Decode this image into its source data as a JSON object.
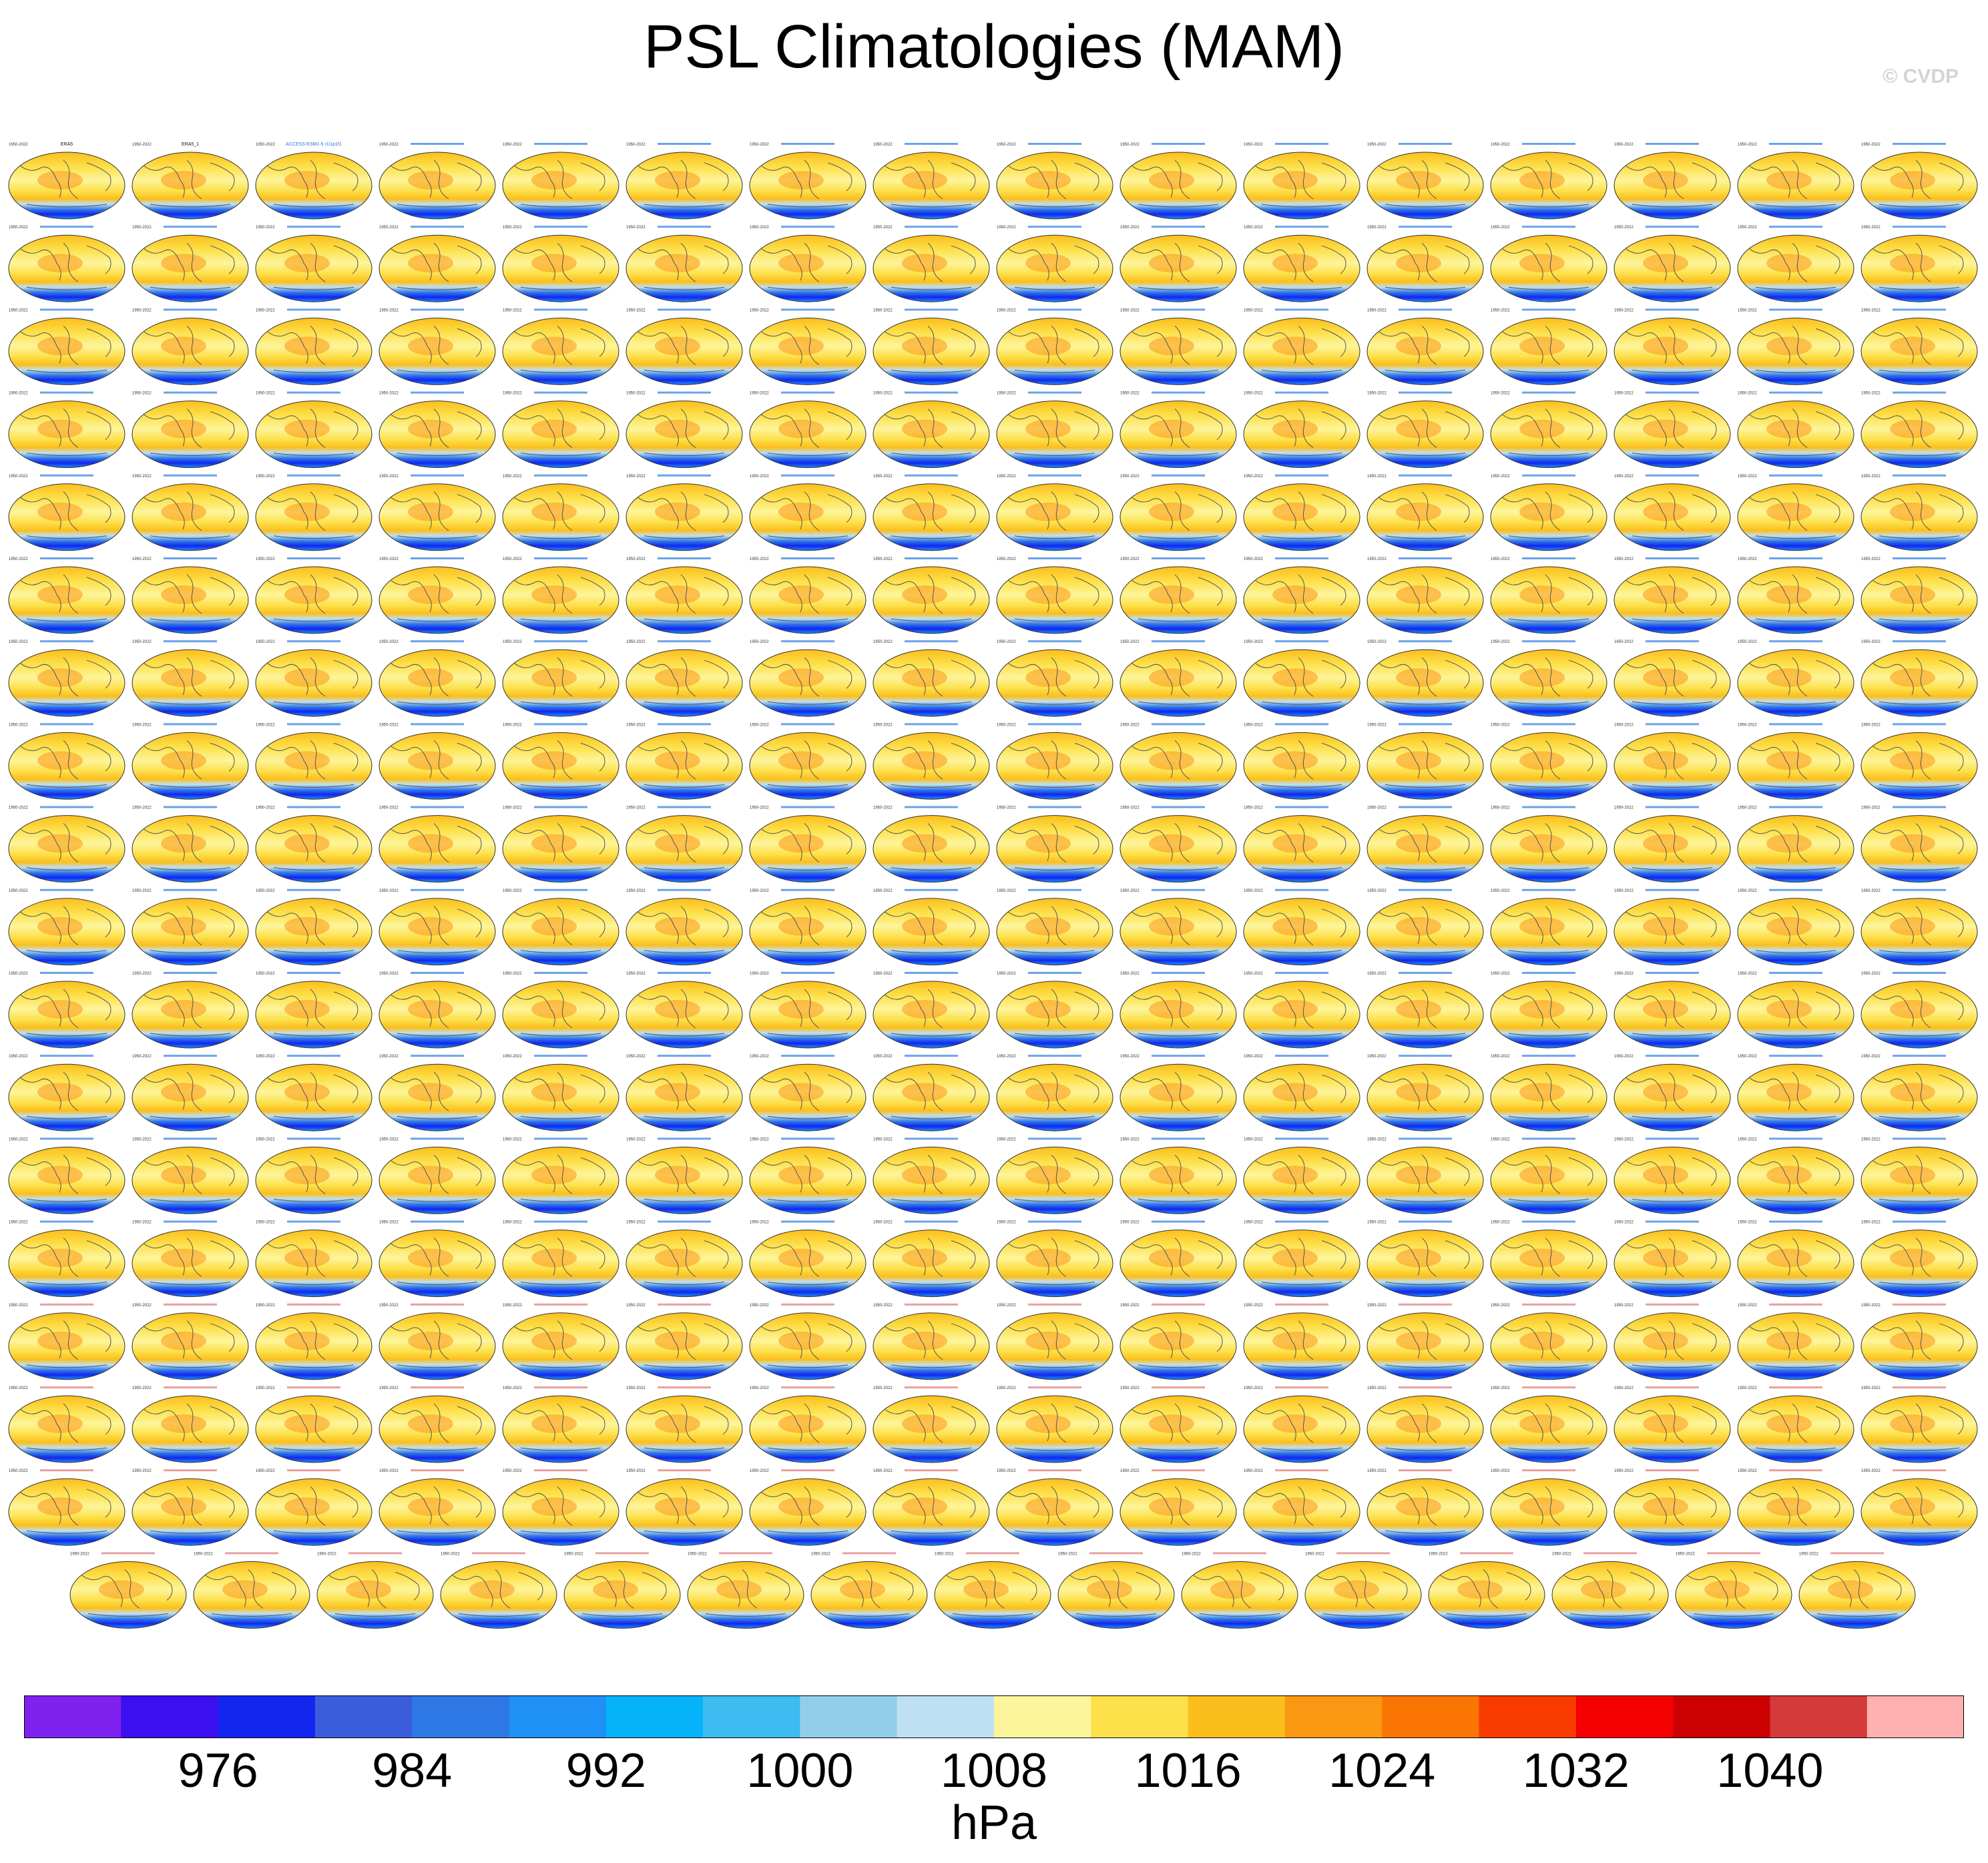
{
  "title": "PSL Climatologies (MAM)",
  "watermark": "© CVDP",
  "chart_data": {
    "type": "heatmap",
    "title": "PSL Climatologies (MAM)",
    "layout": "grid of global map panels",
    "rows": 18,
    "panels_per_full_row": 16,
    "panels_last_row": 15,
    "panel_header_left": "1950-2022",
    "first_panel_titles": [
      "ERA5",
      "ERA5_1",
      "ACCESS-ESM1-5 r1i1p1f1"
    ],
    "map_projection": "Robinson",
    "colorbar": {
      "units": "hPa",
      "tick_labels": [
        "976",
        "984",
        "992",
        "1000",
        "1008",
        "1016",
        "1024",
        "1032",
        "1040"
      ],
      "colors": [
        "#7f22ef",
        "#3a0ff0",
        "#1226f0",
        "#3a5ddc",
        "#2e78e6",
        "#1e90f6",
        "#06b3f8",
        "#3cbcf0",
        "#93cdec",
        "#bfe0f2",
        "#fdf59c",
        "#fde04a",
        "#fbbe1c",
        "#fb9812",
        "#fb7505",
        "#fa3b00",
        "#f50000",
        "#cc0000",
        "#d43a3a",
        "#ffb0b0"
      ]
    }
  }
}
